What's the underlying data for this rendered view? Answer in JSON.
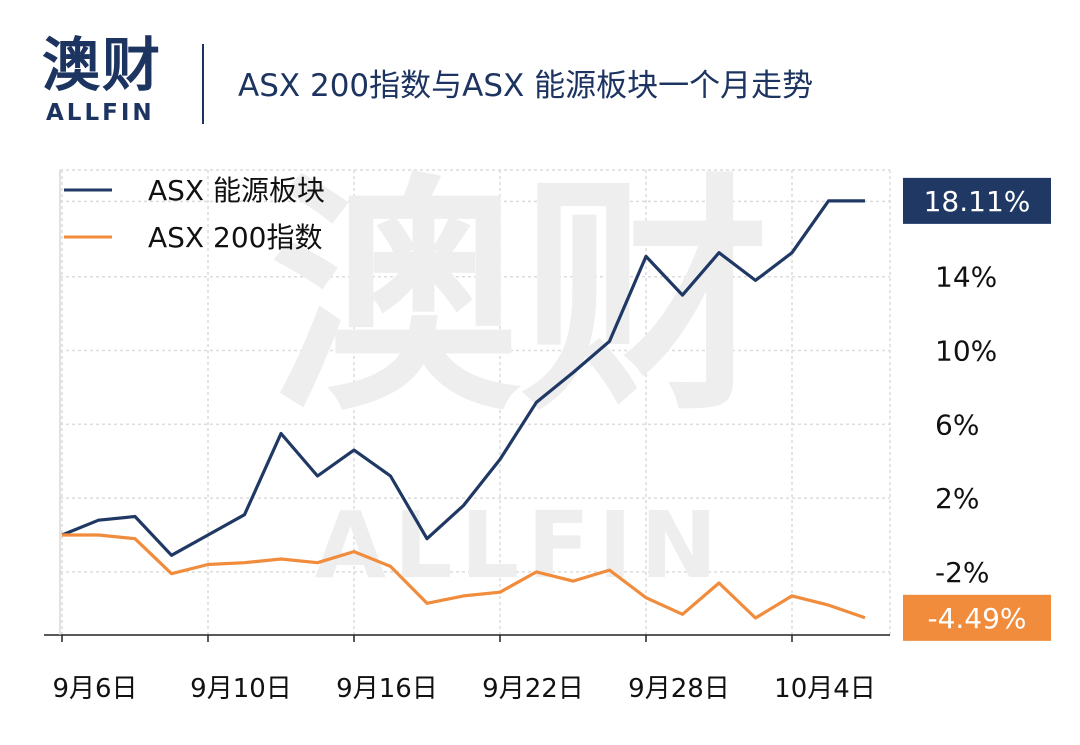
{
  "header": {
    "logo_cn": "澳财",
    "logo_en": "ALLFIN",
    "title": "ASX 200指数与ASX 能源板块一个月走势"
  },
  "watermark": {
    "cn": "澳财",
    "en": "ALLFIN"
  },
  "chart_data": {
    "type": "line",
    "title": "ASX 200指数与ASX 能源板块一个月走势",
    "xlabel": "",
    "ylabel": "",
    "x_tick_labels": [
      "9月6日",
      "9月10日",
      "9月16日",
      "9月22日",
      "9月28日",
      "10月4日"
    ],
    "x_tick_index": [
      0,
      4,
      8,
      12,
      16,
      20
    ],
    "y_ticks": [
      -2,
      2,
      6,
      10,
      14
    ],
    "y_tick_labels": [
      "-2%",
      "2%",
      "6%",
      "10%",
      "14%"
    ],
    "ylim": [
      -5.5,
      20
    ],
    "grid": true,
    "legend_position": "top-left",
    "series": [
      {
        "name": "ASX 能源板块",
        "color": "#1f3864",
        "end_label": "18.11%",
        "values": [
          0,
          0.8,
          1.0,
          -1.1,
          0,
          1.1,
          5.5,
          3.2,
          4.6,
          3.2,
          -0.2,
          1.6,
          4.1,
          7.2,
          8.8,
          10.5,
          15.1,
          13.0,
          15.3,
          13.8,
          15.3,
          18.11,
          18.11
        ]
      },
      {
        "name": "ASX 200指数",
        "color": "#f08c3c",
        "end_label": "-4.49%",
        "values": [
          0,
          0,
          -0.2,
          -2.1,
          -1.6,
          -1.5,
          -1.3,
          -1.5,
          -0.9,
          -1.7,
          -3.7,
          -3.3,
          -3.1,
          -2.0,
          -2.5,
          -1.9,
          -3.4,
          -4.3,
          -2.6,
          -4.5,
          -3.3,
          -3.8,
          -4.49
        ]
      }
    ]
  }
}
